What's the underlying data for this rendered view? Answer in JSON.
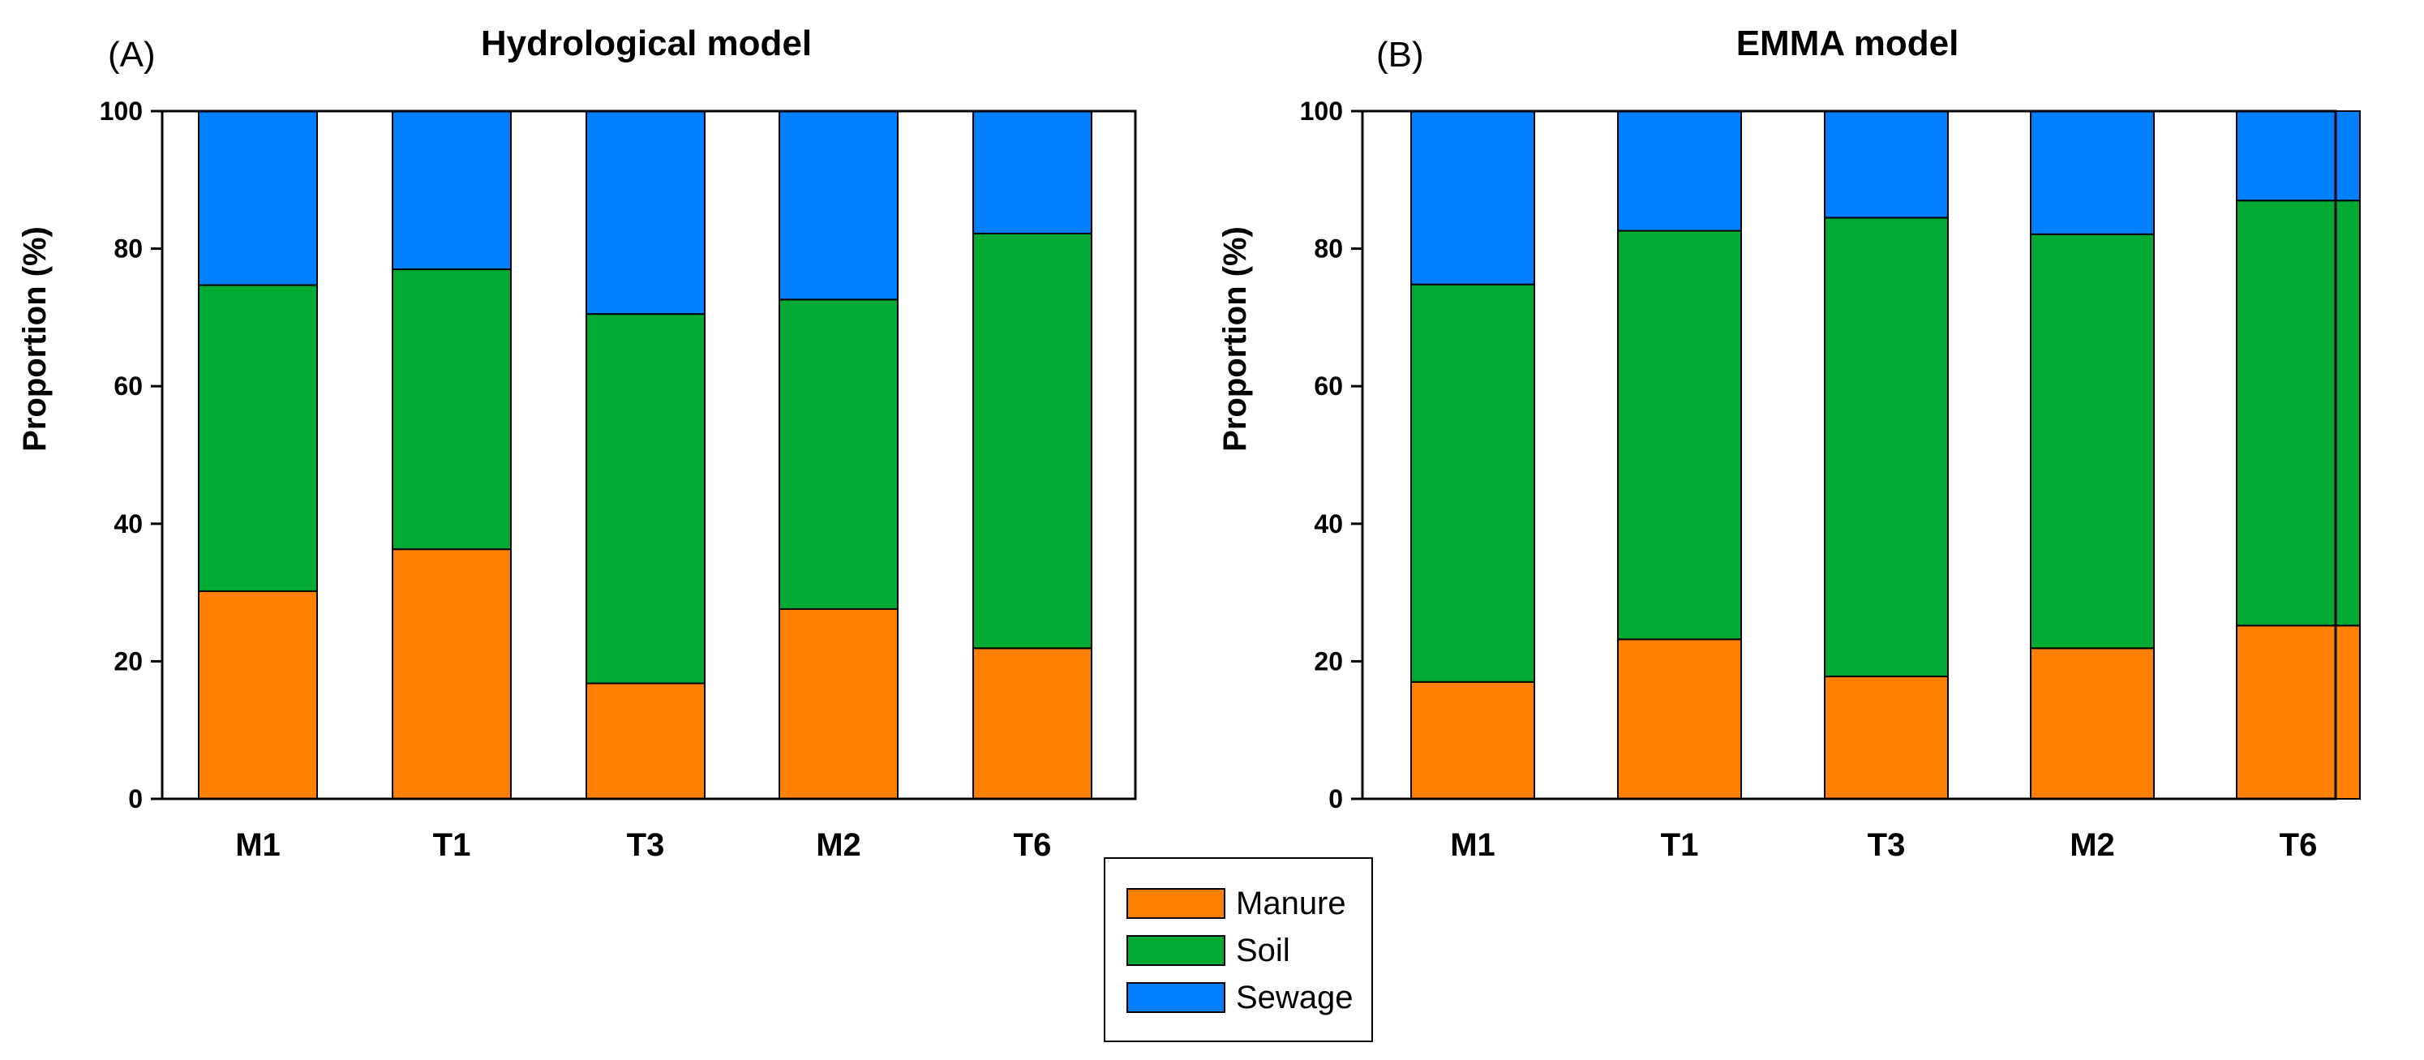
{
  "chart_data": [
    {
      "type": "bar",
      "stacked": true,
      "panel_label": "(A)",
      "title": "Hydrological model",
      "ylabel": "Proportion (%)",
      "xlabel": "",
      "ylim": [
        0,
        100
      ],
      "yticks": [
        "0",
        "20",
        "40",
        "60",
        "80",
        "100"
      ],
      "categories": [
        "M1",
        "T1",
        "T3",
        "M2",
        "T6"
      ],
      "series": [
        {
          "name": "Manure",
          "color": "#ff8000",
          "values": [
            30.2,
            36.3,
            16.8,
            27.6,
            21.9
          ]
        },
        {
          "name": "Soil",
          "color": "#00aa33",
          "values": [
            44.5,
            40.7,
            53.7,
            45.0,
            60.3
          ]
        },
        {
          "name": "Sewage",
          "color": "#0080ff",
          "values": [
            25.3,
            23.0,
            29.5,
            27.4,
            17.8
          ]
        }
      ]
    },
    {
      "type": "bar",
      "stacked": true,
      "panel_label": "(B)",
      "title": "EMMA model",
      "ylabel": "Proportion (%)",
      "xlabel": "",
      "ylim": [
        0,
        100
      ],
      "yticks": [
        "0",
        "20",
        "40",
        "60",
        "80",
        "100"
      ],
      "categories": [
        "M1",
        "T1",
        "T3",
        "M2",
        "T6"
      ],
      "series": [
        {
          "name": "Manure",
          "color": "#ff8000",
          "values": [
            17.0,
            23.2,
            17.8,
            21.9,
            25.2
          ]
        },
        {
          "name": "Soil",
          "color": "#00aa33",
          "values": [
            57.8,
            59.4,
            66.7,
            60.2,
            61.8
          ]
        },
        {
          "name": "Sewage",
          "color": "#0080ff",
          "values": [
            25.2,
            17.4,
            15.5,
            17.9,
            13.0
          ]
        }
      ]
    }
  ],
  "legend": {
    "placement": "bottom-center",
    "entries": [
      {
        "label": "Manure",
        "color": "#ff8000"
      },
      {
        "label": "Soil",
        "color": "#00aa33"
      },
      {
        "label": "Sewage",
        "color": "#0080ff"
      }
    ]
  }
}
